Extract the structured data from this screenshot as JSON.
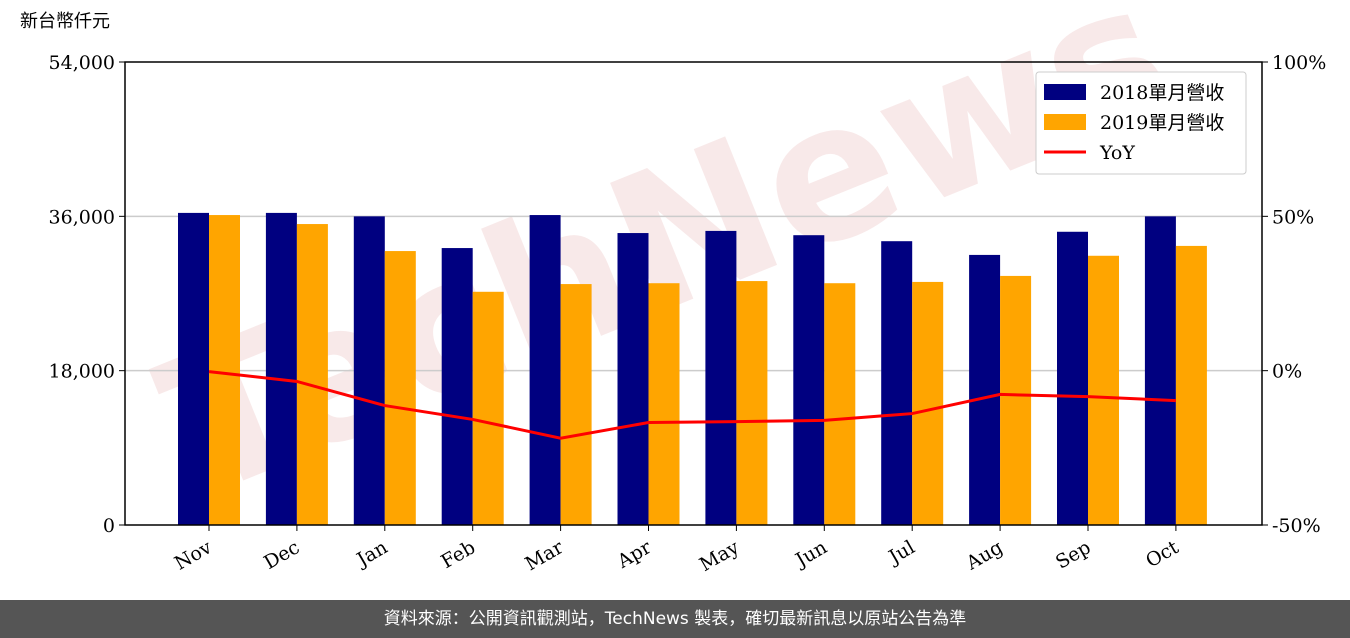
{
  "chart_data": {
    "type": "bar",
    "unit_label": "新台幣仟元",
    "watermark": "TechNews",
    "footer": "資料來源：公開資訊觀測站，TechNews 製表，確切最新訊息以原站公告為準",
    "categories": [
      "Nov",
      "Dec",
      "Jan",
      "Feb",
      "Mar",
      "Apr",
      "May",
      "Jun",
      "Jul",
      "Aug",
      "Sep",
      "Oct"
    ],
    "series": [
      {
        "name": "2018單月營收",
        "color": "#000080",
        "values": [
          36400,
          36400,
          36000,
          32300,
          36150,
          34050,
          34300,
          33800,
          33100,
          31500,
          34200,
          36000
        ]
      },
      {
        "name": "2019單月營收",
        "color": "#ffa500",
        "values": [
          36150,
          35100,
          31950,
          27200,
          28100,
          28200,
          28450,
          28200,
          28350,
          29050,
          31400,
          32550
        ]
      },
      {
        "name": "YoY",
        "type": "line",
        "axis": "y2",
        "color": "#ff0000",
        "values": [
          -0.3,
          -3.5,
          -11.3,
          -15.8,
          -21.9,
          -16.8,
          -16.5,
          -16.1,
          -13.9,
          -7.7,
          -8.4,
          -9.7
        ]
      }
    ],
    "ylim": [
      0,
      54000
    ],
    "yticks": [
      0,
      {
        "value": 18000,
        "label": "18,000"
      },
      {
        "value": 36000,
        "label": "36,000"
      },
      {
        "value": 54000,
        "label": "54,000"
      }
    ],
    "y2lim": [
      -50,
      100
    ],
    "y2ticks": [
      {
        "value": -50,
        "label": "-50%"
      },
      {
        "value": 0,
        "label": "0%"
      },
      {
        "value": 50,
        "label": "50%"
      },
      {
        "value": 100,
        "label": "100%"
      }
    ],
    "grid": true,
    "legend": "upper right"
  }
}
